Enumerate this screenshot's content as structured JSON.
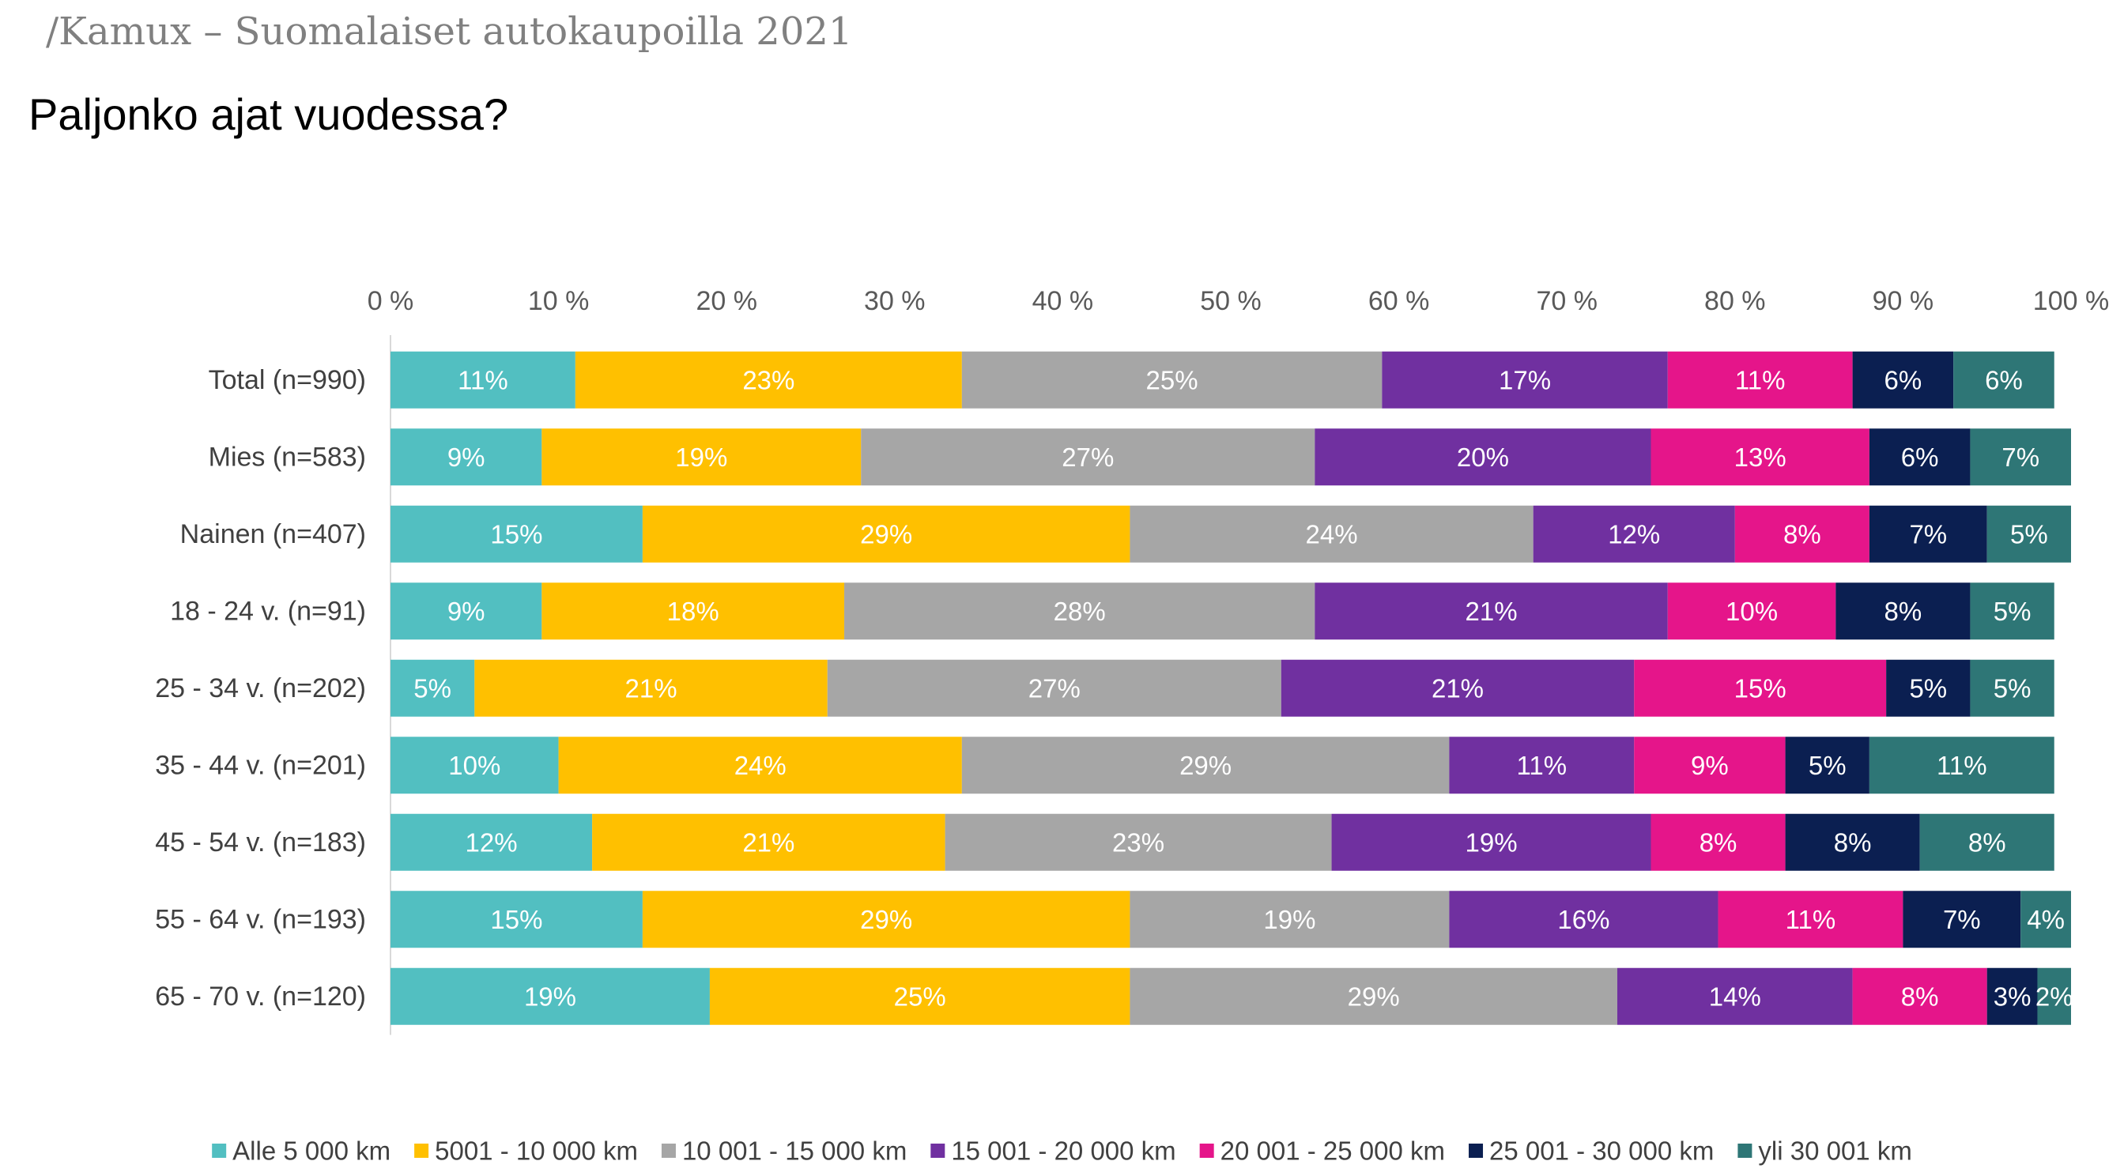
{
  "header": "/Kamux – Suomalaiset autokaupoilla 2021",
  "title": "Paljonko ajat vuodessa?",
  "chart_data": {
    "type": "bar",
    "orientation": "horizontal",
    "stacked": true,
    "xlim": [
      0,
      100
    ],
    "x_ticks": [
      "0 %",
      "10 %",
      "20 %",
      "30 %",
      "40 %",
      "50 %",
      "60 %",
      "70 %",
      "80 %",
      "90 %",
      "100 %"
    ],
    "categories": [
      "Total (n=990)",
      "Mies (n=583)",
      "Nainen (n=407)",
      "18 - 24 v. (n=91)",
      "25 - 34 v. (n=202)",
      "35 - 44 v. (n=201)",
      "45 - 54 v. (n=183)",
      "55 - 64 v. (n=193)",
      "65 - 70 v. (n=120)"
    ],
    "legend_position": "bottom",
    "grid": false,
    "series": [
      {
        "name": "Alle 5 000 km",
        "color": "#52bfc1",
        "values": [
          11,
          9,
          15,
          9,
          5,
          10,
          12,
          15,
          19
        ]
      },
      {
        "name": "5001 - 10 000 km",
        "color": "#ffc000",
        "values": [
          23,
          19,
          29,
          18,
          21,
          24,
          21,
          29,
          25
        ]
      },
      {
        "name": "10 001 - 15 000 km",
        "color": "#a6a6a6",
        "values": [
          25,
          27,
          24,
          28,
          27,
          29,
          23,
          19,
          29
        ]
      },
      {
        "name": "15 001 - 20 000 km",
        "color": "#7030a0",
        "values": [
          17,
          20,
          12,
          21,
          21,
          11,
          19,
          16,
          14
        ]
      },
      {
        "name": "20 001 - 25 000 km",
        "color": "#e5158a",
        "values": [
          11,
          13,
          8,
          10,
          15,
          9,
          8,
          11,
          8
        ]
      },
      {
        "name": "25 001 - 30 000 km",
        "color": "#0b1f51",
        "values": [
          6,
          6,
          7,
          8,
          5,
          5,
          8,
          7,
          3
        ]
      },
      {
        "name": "yli 30 001 km",
        "color": "#2e7676",
        "values": [
          6,
          7,
          5,
          5,
          5,
          11,
          8,
          4,
          2
        ]
      }
    ]
  }
}
